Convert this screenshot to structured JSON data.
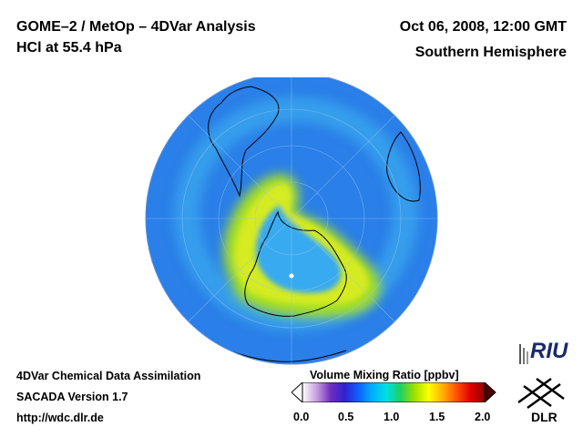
{
  "header": {
    "title_line1": "GOME–2 / MetOp – 4DVar Analysis",
    "title_line2": "HCl at 55.4 hPa",
    "date": "Oct 06, 2008, 12:00 GMT",
    "region": "Southern Hemisphere"
  },
  "footer": {
    "line1": "4DVar Chemical Data Assimilation",
    "line2": "SACADA Version 1.7",
    "url": "http://wdc.dlr.de"
  },
  "colorbar": {
    "label": "Volume Mixing Ratio [ppbv]",
    "min": 0.0,
    "max": 2.0,
    "ticks": [
      "0.0",
      "0.5",
      "1.0",
      "1.5",
      "2.0"
    ],
    "colors": [
      "#ffffff",
      "#c8a0e0",
      "#7030c0",
      "#3020d0",
      "#1060ff",
      "#00b0ff",
      "#00e0e0",
      "#20d060",
      "#a0e000",
      "#ffff00",
      "#ffb000",
      "#ff5000",
      "#e00000",
      "#900000"
    ]
  },
  "logos": {
    "riu": "RIU",
    "dlr": "DLR"
  },
  "map_colors": {
    "background": "#2a7fe8",
    "vortex_inner": "#38aaf0",
    "collar": "#a8e020",
    "collar_core": "#e8f020",
    "outer_ring": "#3fb8f0",
    "coast": "#000000"
  }
}
